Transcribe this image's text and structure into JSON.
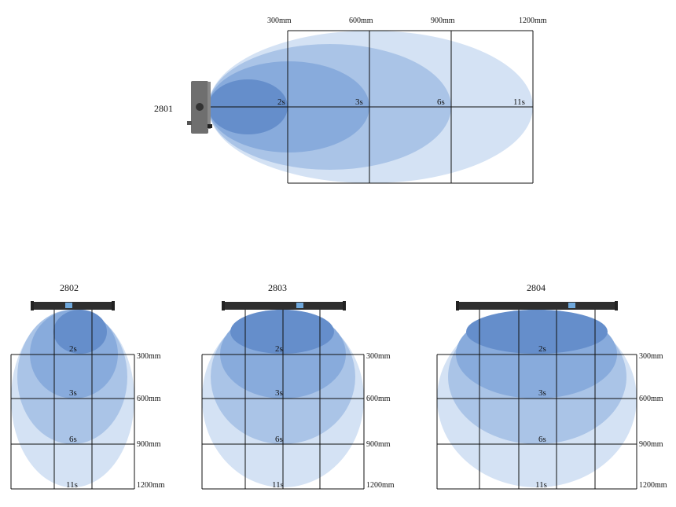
{
  "colors": {
    "t11": "#d4e2f4",
    "t6": "#aac4e7",
    "t3": "#88abdc",
    "t2": "#658ecb",
    "grid": "#111111",
    "device": "#6f6f6f"
  },
  "durations": [
    "2s",
    "3s",
    "6s",
    "11s"
  ],
  "distances": [
    "300mm",
    "600mm",
    "900mm",
    "1200mm"
  ],
  "devices": [
    {
      "name": "2801",
      "orientation": "horizontal"
    },
    {
      "name": "2802",
      "orientation": "vertical"
    },
    {
      "name": "2803",
      "orientation": "vertical"
    },
    {
      "name": "2804",
      "orientation": "vertical"
    }
  ]
}
